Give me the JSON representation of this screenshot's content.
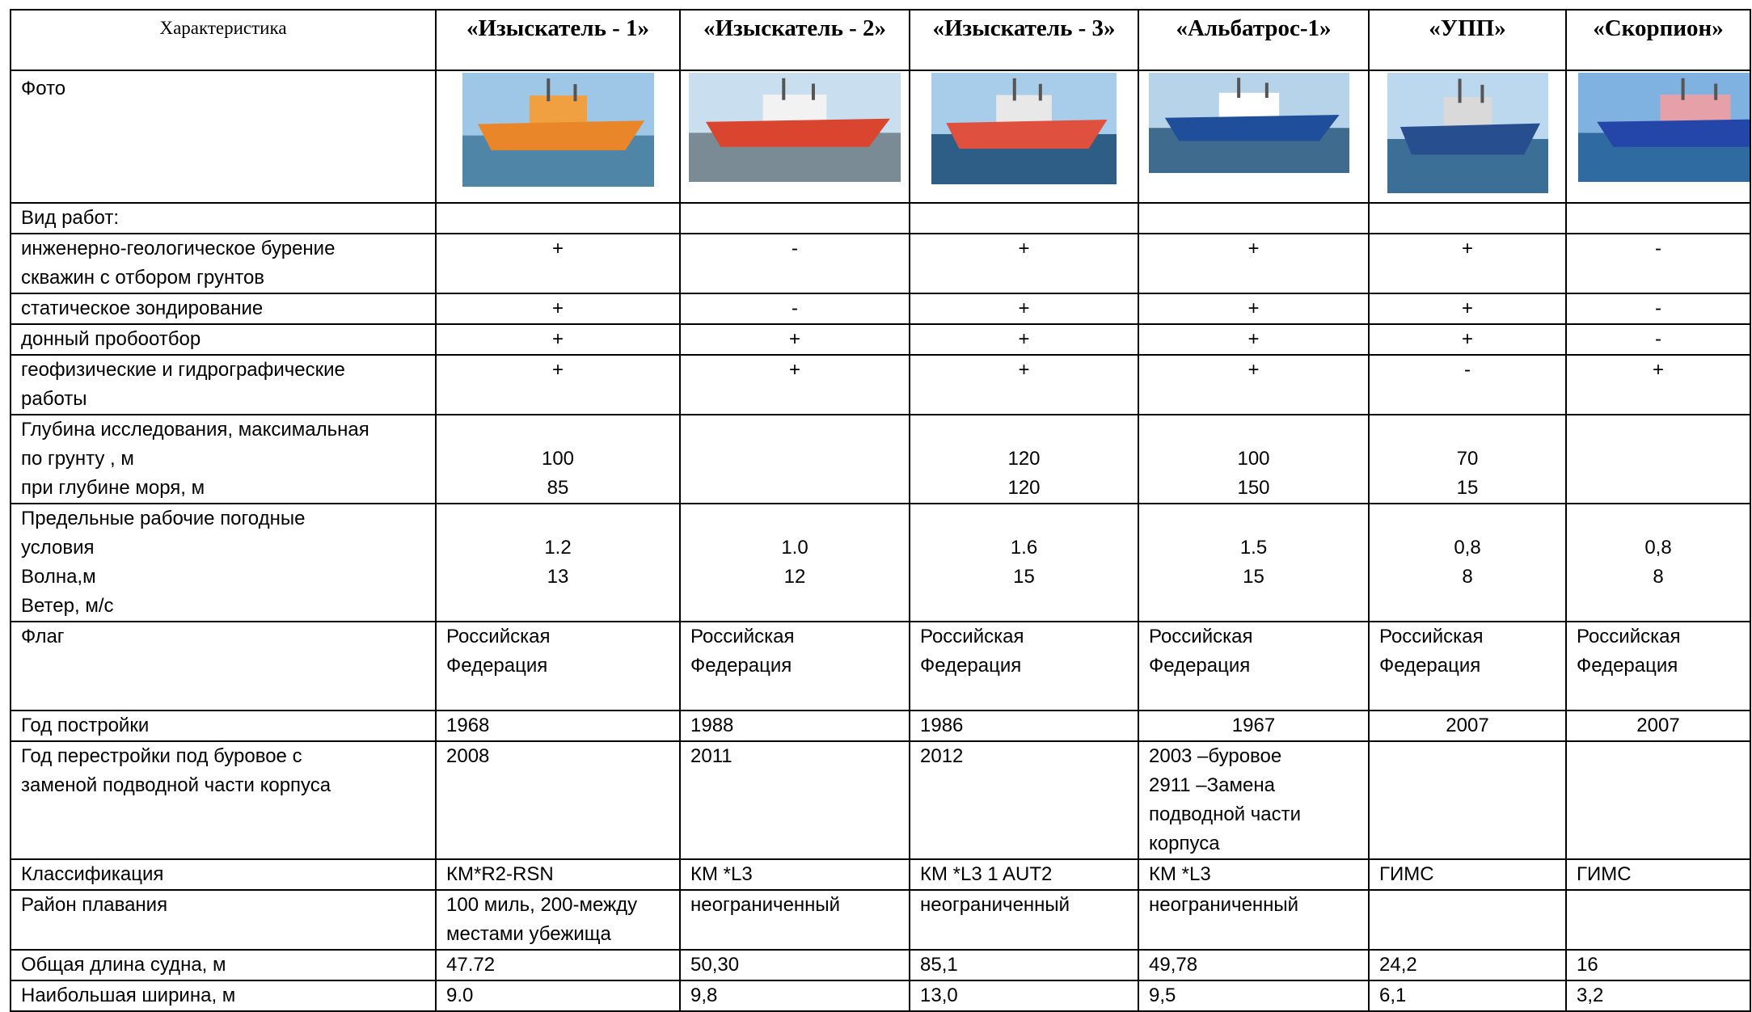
{
  "header": [
    "Характеристика",
    "«Изыскатель - 1»",
    "«Изыскатель - 2»",
    "«Изыскатель - 3»",
    "«Альбатрос-1»",
    "«УПП»",
    "«Скорпион»"
  ],
  "photo_label": "Фото",
  "rows": [
    [
      "Вид работ:",
      null,
      null,
      null,
      null,
      null,
      null
    ],
    [
      [
        "инженерно-геологическое бурение",
        "скважин с отбором грунтов"
      ],
      "+",
      "-",
      "+",
      "+",
      "+",
      "-"
    ],
    [
      "статическое зондирование",
      "+",
      "-",
      "+",
      "+",
      "+",
      "-"
    ],
    [
      "донный пробоотбор",
      "+",
      "+",
      "+",
      "+",
      "+",
      "-"
    ],
    [
      [
        "геофизические и гидрографические",
        "работы"
      ],
      "+",
      "+",
      "+",
      "+",
      "-",
      "+"
    ],
    [
      [
        "Глубина исследования, максимальная",
        "по грунту , м",
        "при глубине моря, м"
      ],
      [
        "100",
        "85"
      ],
      null,
      [
        "120",
        "120"
      ],
      [
        "100",
        "150"
      ],
      [
        "70",
        "15"
      ],
      null
    ],
    [
      [
        "Предельные рабочие  погодные",
        "условия",
        "Волна,м",
        "Ветер, м/с"
      ],
      [
        "1.2",
        "13"
      ],
      [
        "1.0",
        "12"
      ],
      [
        "1.6",
        "15"
      ],
      [
        "1.5",
        "15"
      ],
      [
        "0,8",
        "8"
      ],
      [
        "0,8",
        "8"
      ]
    ],
    [
      "Флаг",
      [
        "Российская",
        "Федерация"
      ],
      [
        "Российская",
        "Федерация"
      ],
      [
        "Российская",
        "Федерация"
      ],
      [
        "Российская",
        "Федерация"
      ],
      [
        "Российская",
        "Федерация"
      ],
      [
        "Российская",
        "Федерация"
      ]
    ],
    [
      "Год постройки",
      "1968",
      "1988",
      "1986",
      "1967",
      "2007",
      "2007"
    ],
    [
      [
        "Год перестройки под буровое с",
        "заменой подводной части корпуса"
      ],
      "2008",
      "2011",
      "2012",
      [
        "2003 –буровое",
        "2911 –Замена",
        "подводной части",
        "корпуса"
      ],
      null,
      null
    ],
    [
      "Классификация",
      "КМ*R2-RSN",
      "КМ *L3",
      "КМ *L3  1 AUT2",
      "КМ *L3",
      "ГИМС",
      "ГИМС"
    ],
    [
      "Район плавания",
      [
        "100 миль, 200-между",
        "местами убежища"
      ],
      "неограниченный",
      "неограниченный",
      "неограниченный",
      null,
      null
    ],
    [
      "Общая длина судна, м",
      "47.72",
      "50,30",
      "85,1",
      "49,78",
      "24,2",
      "16"
    ],
    [
      "Наибольшая ширина, м",
      "9.0",
      "9,8",
      "13,0",
      "9,5",
      "6,1",
      "3,2"
    ]
  ]
}
